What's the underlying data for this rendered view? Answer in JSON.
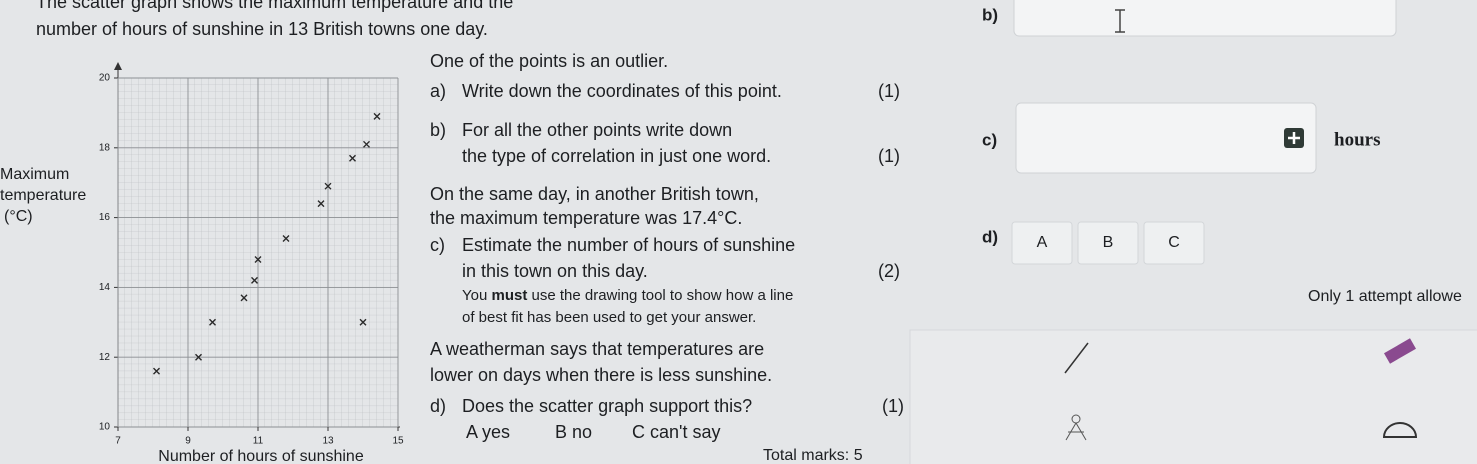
{
  "header": {
    "line1": "The scatter graph shows the maximum temperature and the",
    "line2": "number of hours of sunshine in 13 British towns one day."
  },
  "chart_data": {
    "type": "scatter",
    "x_label": "Number of hours of sunshine",
    "y_label": [
      "Maximum",
      "temperature",
      "(°C)"
    ],
    "series": [
      {
        "color": "#2a2a2a",
        "x": [
          14.4,
          14.1,
          13.7,
          13.0,
          12.8,
          11.8,
          11.0,
          10.9,
          10.6,
          9.7,
          14.0,
          9.3,
          8.1
        ],
        "values": [
          18.9,
          18.1,
          17.7,
          16.9,
          16.4,
          15.4,
          14.8,
          14.2,
          13.7,
          13.0,
          13.0,
          12.0,
          11.6
        ]
      }
    ],
    "xlim": [
      7,
      15
    ],
    "xticks": [
      7,
      9,
      11,
      13,
      15
    ],
    "ylim": [
      10,
      20
    ],
    "yticks": [
      10,
      12,
      14,
      16,
      18,
      20
    ],
    "grid": true
  },
  "questions": {
    "intro": "One of the points is an outlier.",
    "a": {
      "label": "a)",
      "text": "Write down the coordinates of this point.",
      "marks": "(1)"
    },
    "b": {
      "label": "b)",
      "lines": [
        "For all the other points write down",
        "the type of correlation in just one word."
      ],
      "marks": "(1)"
    },
    "context": [
      "On the same day, in another British town,",
      "the maximum temperature was 17.4°C."
    ],
    "c": {
      "label": "c)",
      "lines": [
        "Estimate the number of hours of sunshine",
        "in this town on this day."
      ],
      "marks": "(2)",
      "note": [
        "You",
        "must",
        "use the drawing tool to show how a line",
        "of best fit has been used to get your answer."
      ]
    },
    "statement": [
      "A weatherman says that temperatures are",
      "lower on days when there is less sunshine."
    ],
    "d": {
      "label": "d)",
      "text": "Does the scatter graph support this?",
      "marks": "(1)",
      "options": [
        "A yes",
        "B no",
        "C can't say"
      ]
    },
    "total": "Total marks: 5"
  },
  "answers": {
    "b_label": "b)",
    "c_label": "c)",
    "c_unit": "hours",
    "d_label": "d)",
    "d_options": [
      "A",
      "B",
      "C"
    ],
    "attempts": "Only 1 attempt allowe"
  }
}
